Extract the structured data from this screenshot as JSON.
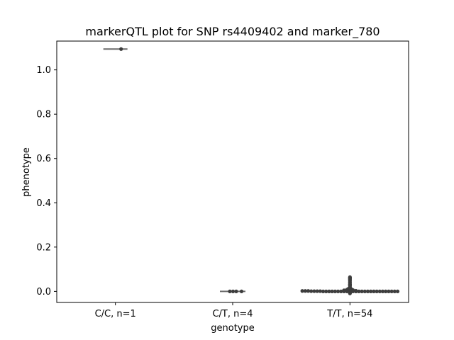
{
  "chart_data": {
    "type": "scatter",
    "title": "markerQTL plot for SNP rs4409402 and marker_780",
    "xlabel": "genotype",
    "ylabel": "phenotype",
    "categories": [
      "C/C, n=1",
      "C/T, n=4",
      "T/T, n=54"
    ],
    "ylim": [
      -0.05,
      1.13
    ],
    "yticks": [
      0.0,
      0.2,
      0.4,
      0.6,
      0.8,
      1.0
    ],
    "ytick_labels": [
      "0.0",
      "0.2",
      "0.4",
      "0.6",
      "0.8",
      "1.0"
    ],
    "grid": false,
    "colors": {
      "points": "#3d3d3d",
      "violin": "#6b6b6b",
      "axis": "#000000"
    },
    "groups": [
      {
        "category": "C/C, n=1",
        "median": 1.094,
        "range": [
          1.094,
          1.094
        ],
        "points": [
          1.094
        ]
      },
      {
        "category": "C/T, n=4",
        "median": 0.0,
        "range": [
          0.0,
          0.0
        ],
        "points": [
          0.0,
          0.0,
          0.0,
          0.0
        ]
      },
      {
        "category": "T/T, n=54",
        "median": 0.0,
        "range": [
          -0.01,
          0.065
        ],
        "points": [
          0.059,
          0.063,
          0.055,
          0.048,
          0.04,
          0.032,
          0.03,
          0.025,
          0.018,
          0.012,
          0.01,
          0.008,
          0.007,
          0.006,
          0.005,
          0.004,
          0.004,
          0.003,
          0.003,
          0.002,
          0.002,
          0.002,
          0.001,
          0.001,
          0.001,
          0.001,
          0.0,
          0.0,
          0.0,
          0.0,
          0.0,
          0.0,
          0.0,
          0.0,
          0.0,
          0.0,
          0.0,
          0.0,
          0.0,
          0.0,
          0.0,
          0.0,
          0.0,
          0.0,
          0.0,
          0.0,
          0.0,
          0.0,
          0.0,
          0.0,
          0.0,
          0.0,
          -0.005,
          -0.008
        ]
      }
    ]
  }
}
